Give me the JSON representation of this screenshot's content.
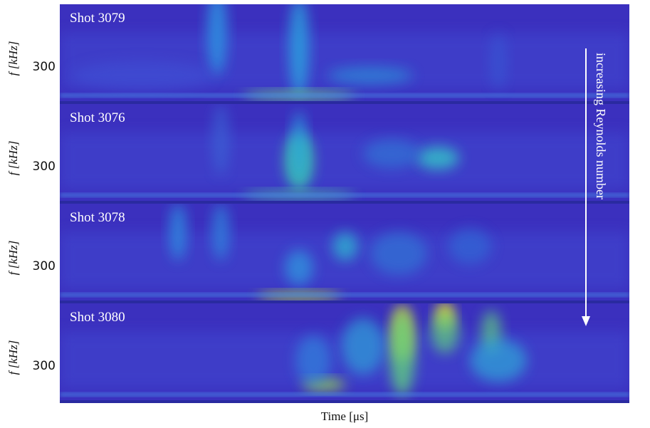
{
  "panels": [
    {
      "title": "Shot 3079",
      "ytick": "300",
      "ylabel": "f [kHz]"
    },
    {
      "title": "Shot 3076",
      "ytick": "300",
      "ylabel": "f [kHz]"
    },
    {
      "title": "Shot 3078",
      "ytick": "300",
      "ylabel": "f [kHz]"
    },
    {
      "title": "Shot 3080",
      "ytick": "300",
      "ylabel": "f [kHz]"
    }
  ],
  "xlabel": "Time [μs]",
  "annotation": "increasing Reynolds number"
}
